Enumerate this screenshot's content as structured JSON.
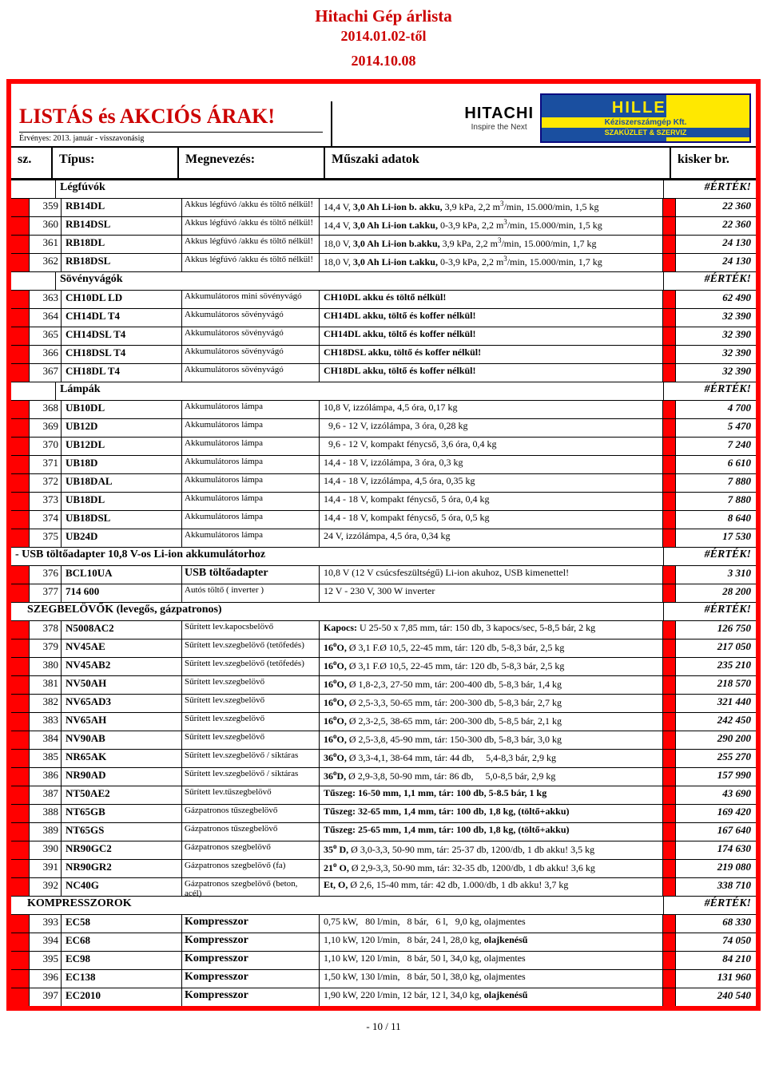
{
  "page": {
    "title": "Hitachi Gép árlista",
    "sub1": "2014.01.02-től",
    "sub2": "2014.10.08",
    "footer": "- 10 / 11"
  },
  "header": {
    "title": "LISTÁS és AKCIÓS ÁRAK!",
    "valid": "Érvényes: 2013. január - visszavonásig",
    "hitachi_big": "HITACHI",
    "hitachi_tag": "Inspire the Next",
    "hiller1": "HILLER",
    "hiller2": "Kéziszerszámgép Kft.",
    "hiller3": "SZAKÜZLET & SZERVIZ",
    "col_sz": "sz.",
    "col_type": "Típus:",
    "col_name": "Megnevezés:",
    "col_spec": "Műszaki adatok",
    "col_price": "kisker br."
  },
  "ertek": "#ÉRTÉK!",
  "sections": [
    {
      "label": "Légfúvók"
    },
    {
      "label": "Sövényvágók"
    },
    {
      "label": "Lámpák"
    },
    {
      "label": "- USB töltőadapter 10,8 V-os Li-ion akkumulátorhoz",
      "wide": true
    },
    {
      "label": "SZEGBELÖVŐK (levegős, gázpatronos)",
      "wide": true,
      "indent": true
    },
    {
      "label": "KOMPRESSZOROK",
      "wide": true,
      "indent": true
    }
  ],
  "rows": [
    {
      "n": "359",
      "t": "RB14DL",
      "d": "Akkus légfúvó /akku és töltő nélkül!",
      "s": "14,4 V, <b>3,0 Ah Li-ion b. akku,</b> 3,9 kPa, 2,2 m<sup>3</sup>/min, 15.000/min, 1,5 kg",
      "p": "22 360"
    },
    {
      "n": "360",
      "t": "RB14DSL",
      "d": "Akkus légfúvó /akku és töltő nélkül!",
      "s": "14,4 V, <b>3,0 Ah Li-ion t.akku,</b> 0-3,9 kPa, 2,2 m<sup>3</sup>/min, 15.000/min, 1,5 kg",
      "p": "22 360"
    },
    {
      "n": "361",
      "t": "RB18DL",
      "d": "Akkus légfúvó /akku és töltő nélkül!",
      "s": "18,0 V, <b>3,0 Ah Li-ion b.akku,</b> 3,9 kPa, 2,2 m<sup>3</sup>/min, 15.000/min, 1,7 kg",
      "p": "24 130"
    },
    {
      "n": "362",
      "t": "RB18DSL",
      "d": "Akkus légfúvó /akku és töltő nélkül!",
      "s": "18,0 V, <b>3,0 Ah Li-ion t.akku,</b> 0-3,9 kPa, 2,2 m<sup>3</sup>/min, 15.000/min, 1,7 kg",
      "p": "24 130"
    },
    {
      "section": 1
    },
    {
      "n": "363",
      "t": "CH10DL LD",
      "d": "Akkumulátoros mini sövényvágó",
      "s": "<b>CH10DL akku és töltő nélkül!</b>",
      "p": "62 490"
    },
    {
      "n": "364",
      "t": "CH14DL T4",
      "d": "Akkumulátoros sövényvágó",
      "s": "<b>CH14DL akku, töltő és koffer nélkül!</b>",
      "p": "32 390"
    },
    {
      "n": "365",
      "t": "CH14DSL T4",
      "d": "Akkumulátoros sövényvágó",
      "s": "<b>CH14DL akku, töltő és koffer nélkül!</b>",
      "p": "32 390"
    },
    {
      "n": "366",
      "t": "CH18DSL T4",
      "d": "Akkumulátoros sövényvágó",
      "s": "<b>CH18DSL akku, töltő és koffer nélkül!</b>",
      "p": "32 390"
    },
    {
      "n": "367",
      "t": "CH18DL T4",
      "d": "Akkumulátoros sövényvágó",
      "s": "<b>CH18DL akku, töltő és koffer nélkül!</b>",
      "p": "32 390"
    },
    {
      "section": 2
    },
    {
      "n": "368",
      "t": "UB10DL",
      "d": "Akkumulátoros lámpa",
      "s": "10,8 V, izzólámpa, 4,5 óra, 0,17 kg",
      "p": "4 700"
    },
    {
      "n": "369",
      "t": "UB12D",
      "d": "Akkumulátoros lámpa",
      "s": "&nbsp;&nbsp;9,6 - 12 V, izzólámpa, 3 óra, 0,28 kg",
      "p": "5 470"
    },
    {
      "n": "370",
      "t": "UB12DL",
      "d": "Akkumulátoros lámpa",
      "s": "&nbsp;&nbsp;9,6 - 12 V, kompakt fénycső, 3,6 óra, 0,4 kg",
      "p": "7 240"
    },
    {
      "n": "371",
      "t": "UB18D",
      "d": "Akkumulátoros lámpa",
      "s": "14,4 - 18 V, izzólámpa, 3 óra, 0,3 kg",
      "p": "6 610"
    },
    {
      "n": "372",
      "t": "UB18DAL",
      "d": "Akkumulátoros lámpa",
      "s": "14,4 - 18 V, izzólámpa, 4,5 óra, 0,35 kg",
      "p": "7 880"
    },
    {
      "n": "373",
      "t": "UB18DL",
      "d": "Akkumulátoros lámpa",
      "s": "14,4 - 18 V, kompakt fénycső, 5 óra, 0,4 kg",
      "p": "7 880"
    },
    {
      "n": "374",
      "t": "UB18DSL",
      "d": "Akkumulátoros lámpa",
      "s": "14,4 - 18 V, kompakt fénycső, 5 óra, 0,5 kg",
      "p": "8 640"
    },
    {
      "n": "375",
      "t": "UB24D",
      "d": "Akkumulátoros lámpa",
      "s": "24 V, izzólámpa, 4,5 óra, 0,34 kg",
      "p": "17 530"
    },
    {
      "section": 3
    },
    {
      "n": "376",
      "t": "BCL10UA",
      "d": "USB töltőadapter",
      "dbig": true,
      "s": "10,8 V (12 V csúcsfeszültségű) Li-ion akuhoz, USB kimenettel!",
      "p": "3 310"
    },
    {
      "n": "377",
      "t": "714 600",
      "d": "Autós töltő ( inverter )",
      "s": "12 V - 230 V, 300 W inverter",
      "p": "28 200"
    },
    {
      "section": 4
    },
    {
      "n": "378",
      "t": "N5008AC2",
      "d": "Sűrített lev.kapocsbelövő",
      "s": "<b>Kapocs:</b> U 25-50 x 7,85 mm, tár: 150 db, 3 kapocs/sec, 5-8,5 bár, 2 kg",
      "p": "126 750"
    },
    {
      "n": "379",
      "t": "NV45AE",
      "d": "Sűrített lev.szegbelövő (tetőfedés)",
      "s": "<b>16<sup>o</sup>O,</b> Ø 3,1 F.Ø 10,5, 22-45 mm, tár: 120 db, 5-8,3 bár, 2,5 kg",
      "p": "217 050"
    },
    {
      "n": "380",
      "t": "NV45AB2",
      "d": "Sűrített lev.szegbelövő (tetőfedés)",
      "s": "<b>16<sup>o</sup>O,</b> Ø 3,1 F.Ø 10,5, 22-45 mm, tár: 120 db, 5-8,3 bár, 2,5 kg",
      "p": "235 210"
    },
    {
      "n": "381",
      "t": "NV50AH",
      "d": "Sűrített lev.szegbelövő",
      "s": "<b>16<sup>o</sup>O,</b> Ø 1,8-2,3, 27-50 mm, tár: 200-400 db, 5-8,3 bár, 1,4 kg",
      "p": "218 570"
    },
    {
      "n": "382",
      "t": "NV65AD3",
      "d": "Sűrített lev.szegbelövő",
      "s": "<b>16<sup>o</sup>O,</b> Ø 2,5-3,3, 50-65 mm, tár: 200-300 db, 5-8,3 bár, 2,7 kg",
      "p": "321 440"
    },
    {
      "n": "383",
      "t": "NV65AH",
      "d": "Sűrített lev.szegbelövő",
      "s": "<b>16<sup>o</sup>O,</b> Ø 2,3-2,5, 38-65 mm, tár: 200-300 db, 5-8,5 bár, 2,1 kg",
      "p": "242 450"
    },
    {
      "n": "384",
      "t": "NV90AB",
      "d": "Sűrített lev.szegbelövő",
      "s": "<b>16<sup>o</sup>O,</b> Ø 2,5-3,8, 45-90 mm, tár: 150-300 db, 5-8,3 bár, 3,0 kg",
      "p": "290 200"
    },
    {
      "n": "385",
      "t": "NR65AK",
      "d": "Sűrített lev.szegbelövő / síktáras",
      "s": "<b>36<sup>o</sup>O,</b> Ø 3,3-4,1, 38-64 mm, tár: 44 db,&nbsp;&nbsp;&nbsp;&nbsp;&nbsp;5,4-8,3 bár, 2,9 kg",
      "p": "255 270"
    },
    {
      "n": "386",
      "t": "NR90AD",
      "d": "Sűrített lev.szegbelövő / síktáras",
      "s": "<b>36<sup>o</sup>D,</b> Ø 2,9-3,8, 50-90 mm, tár: 86 db,&nbsp;&nbsp;&nbsp;&nbsp;&nbsp;5,0-8,5 bár, 2,9 kg",
      "p": "157 990"
    },
    {
      "n": "387",
      "t": "NT50AE2",
      "d": "Sűrített lev.tűszegbelövő",
      "s": "<b>Tűszeg: 16-50 mm, 1,1 mm, tár: 100 db, 5-8.5 bár, 1 kg</b>",
      "p": "43 690"
    },
    {
      "n": "388",
      "t": "NT65GB",
      "d": "Gázpatronos tűszegbelövő",
      "s": "<b>Tűszeg: 32-65 mm, 1,4 mm, tár: 100 db, 1,8 kg, (töltő+akku)</b>",
      "p": "169 420"
    },
    {
      "n": "389",
      "t": "NT65GS",
      "d": "Gázpatronos tűszegbelövő",
      "s": "<b>Tűszeg: 25-65 mm, 1,4 mm, tár: 100 db, 1,8 kg, (töltő+akku)</b>",
      "p": "167 640"
    },
    {
      "n": "390",
      "t": "NR90GC2",
      "d": "Gázpatronos szegbelövő",
      "s": "<b>35<sup>o</sup> D,</b> Ø 3,0-3,3, 50-90 mm, tár: 25-37 db, 1200/db, 1 db akku! 3,5 kg",
      "p": "174 630"
    },
    {
      "n": "391",
      "t": "NR90GR2",
      "d": "Gázpatronos szegbelövő (fa)",
      "s": "<b>21<sup>o</sup> O,</b> Ø 2,9-3,3, 50-90 mm, tár: 32-35 db, 1200/db, 1 db akku! 3,6 kg",
      "p": "219 080"
    },
    {
      "n": "392",
      "t": "NC40G",
      "d": "Gázpatronos szegbelövő (beton, acél)",
      "s": "<b>Et, O,</b> Ø 2,6, 15-40 mm, tár: 42 db, 1.000/db, 1 db akku! 3,7 kg",
      "p": "338 710"
    },
    {
      "section": 5
    },
    {
      "n": "393",
      "t": "EC58",
      "d": "Kompresszor",
      "dbig": true,
      "s": "0,75 kW,&nbsp;&nbsp;&nbsp;80 l/min,&nbsp;&nbsp;&nbsp;8 bár,&nbsp;&nbsp;&nbsp;6 l,&nbsp;&nbsp;&nbsp;9,0 kg, olajmentes",
      "p": "68 330"
    },
    {
      "n": "394",
      "t": "EC68",
      "d": "Kompresszor",
      "dbig": true,
      "s": "1,10 kW, 120 l/min,&nbsp;&nbsp;&nbsp;8 bár, 24 l, 28,0 kg, <b>olajkenésű</b>",
      "p": "74 050"
    },
    {
      "n": "395",
      "t": "EC98",
      "d": "Kompresszor",
      "dbig": true,
      "s": "1,10 kW, 120 l/min,&nbsp;&nbsp;&nbsp;8 bár, 50 l, 34,0 kg, olajmentes",
      "p": "84 210"
    },
    {
      "n": "396",
      "t": "EC138",
      "d": "Kompresszor",
      "dbig": true,
      "s": "1,50 kW, 130 l/min,&nbsp;&nbsp;&nbsp;8 bár, 50 l, 38,0 kg, olajmentes",
      "p": "131 960"
    },
    {
      "n": "397",
      "t": "EC2010",
      "d": "Kompresszor",
      "dbig": true,
      "s": "1,90 kW, 220 l/min, 12 bár, 12 l, 34,0 kg, <b>olajkenésű</b>",
      "p": "240 540"
    }
  ]
}
